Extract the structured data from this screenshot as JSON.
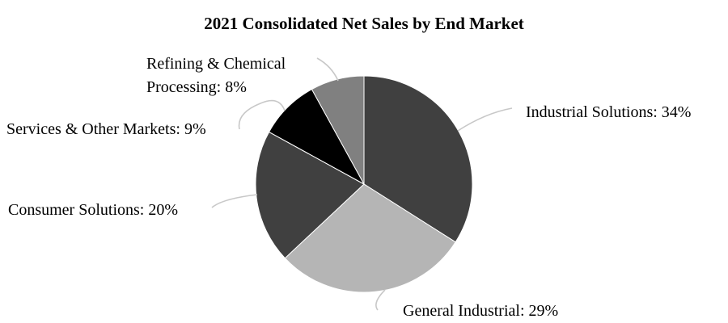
{
  "chart_data": {
    "type": "pie",
    "title": "2021 Consolidated Net Sales by End Market",
    "slices": [
      {
        "name": "Industrial Solutions",
        "value": 34,
        "label": "Industrial Solutions: 34%",
        "color": "#404040"
      },
      {
        "name": "General Industrial",
        "value": 29,
        "label": "General Industrial: 29%",
        "color": "#b5b5b5"
      },
      {
        "name": "Consumer Solutions",
        "value": 20,
        "label": "Consumer Solutions: 20%",
        "color": "#404040"
      },
      {
        "name": "Services & Other Markets",
        "value": 9,
        "label": "Services & Other Markets: 9%",
        "color": "#000000"
      },
      {
        "name": "Refining & Chemical Processing",
        "value": 8,
        "label_lines": [
          "Refining & Chemical",
          "Processing: 8%"
        ],
        "color": "#808080"
      }
    ],
    "start_angle": "12 o'clock",
    "direction": "clockwise",
    "legend": "none",
    "labels": "outside with leader lines"
  }
}
